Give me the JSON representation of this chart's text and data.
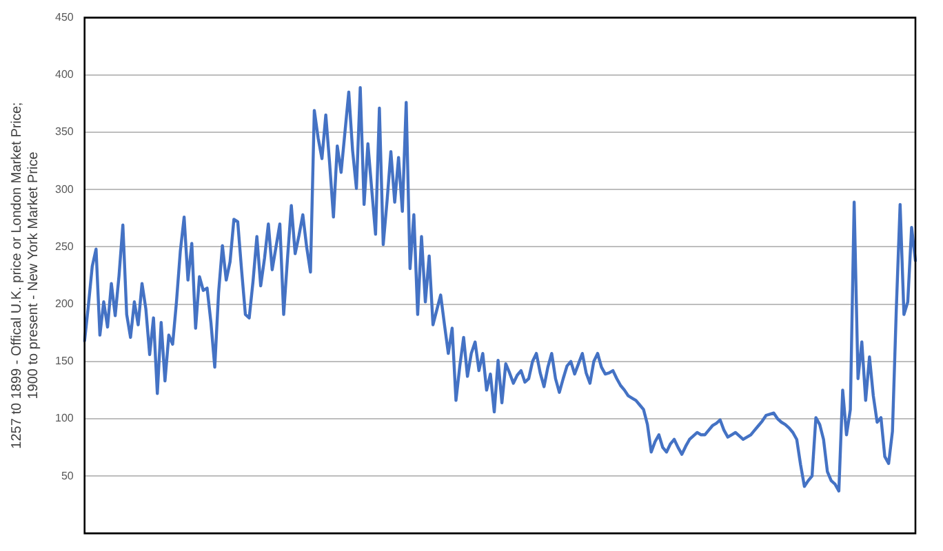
{
  "chart_data": {
    "type": "line",
    "ylabel": "1257 t0 1899 - Offical U.K. price or London Market Price; 1900 to present - New York Market Price",
    "categories": [
      null,
      null,
      null,
      null,
      null,
      null,
      null,
      null,
      null,
      null,
      null,
      null,
      null,
      null,
      null,
      null,
      null,
      null,
      null,
      null,
      null,
      null,
      null,
      null,
      null,
      null,
      null,
      null,
      null,
      null,
      null,
      null,
      null,
      null,
      null,
      null,
      null,
      null,
      null,
      null,
      null,
      null,
      null,
      null,
      null,
      null,
      null,
      null,
      null,
      null,
      null,
      null,
      null,
      null,
      null,
      null,
      null,
      null,
      null,
      null,
      null,
      null,
      null,
      null,
      null,
      null,
      null,
      null,
      null,
      null,
      null,
      null,
      null,
      null,
      null,
      null,
      null,
      null,
      null,
      null,
      null,
      null,
      null,
      null,
      null,
      null,
      null,
      null,
      null,
      null,
      null,
      null,
      null,
      null,
      null,
      null,
      null,
      null,
      null,
      null,
      null,
      null,
      null,
      null,
      null,
      null,
      null,
      null,
      null,
      null,
      null,
      null,
      null,
      null,
      null,
      null,
      null,
      null,
      null,
      null,
      null,
      null,
      null,
      null,
      null,
      null,
      null,
      null,
      null,
      null,
      null,
      null,
      null,
      null,
      null,
      null,
      null,
      null,
      null,
      null,
      null,
      null,
      null,
      null,
      null,
      null,
      null,
      null,
      null,
      null,
      null,
      null,
      null,
      null,
      null,
      null,
      null,
      null,
      null,
      null,
      null,
      null,
      null,
      null,
      null,
      null,
      null,
      null,
      null,
      null,
      null,
      null,
      null,
      null,
      null,
      null,
      null,
      null,
      null,
      null,
      null,
      null,
      null,
      null,
      null,
      null,
      null,
      null,
      null,
      null,
      null,
      null,
      null,
      null,
      null,
      null,
      null,
      null,
      null,
      null,
      null,
      null,
      null,
      null,
      null,
      null,
      null,
      null,
      null,
      null,
      null,
      null,
      null,
      null,
      null,
      null,
      null,
      null
    ],
    "series": [
      {
        "color": "#4472c4",
        "values": [
          168,
          199,
          233,
          248,
          173,
          202,
          180,
          218,
          190,
          225,
          269,
          191,
          171,
          202,
          182,
          218,
          196,
          156,
          188,
          122,
          184,
          133,
          173,
          165,
          202,
          246,
          276,
          221,
          253,
          179,
          224,
          212,
          214,
          184,
          145,
          210,
          251,
          221,
          237,
          274,
          272,
          230,
          191,
          188,
          220,
          259,
          216,
          240,
          270,
          230,
          250,
          270,
          191,
          240,
          286,
          244,
          260,
          278,
          250,
          228,
          369,
          345,
          327,
          365,
          323,
          276,
          338,
          315,
          350,
          385,
          334,
          301,
          389,
          287,
          340,
          300,
          261,
          371,
          252,
          290,
          333,
          289,
          328,
          281,
          376,
          231,
          278,
          191,
          259,
          202,
          242,
          182,
          195,
          208,
          182,
          157,
          179,
          116,
          146,
          171,
          137,
          157,
          167,
          142,
          157,
          125,
          139,
          106,
          151,
          114,
          148,
          140,
          131,
          138,
          142,
          132,
          135,
          150,
          157,
          140,
          128,
          145,
          157,
          135,
          123,
          135,
          146,
          150,
          139,
          148,
          157,
          140,
          131,
          150,
          157,
          145,
          139,
          140,
          142,
          135,
          129,
          125,
          120,
          118,
          116,
          112,
          108,
          95,
          71,
          80,
          86,
          75,
          71,
          78,
          82,
          75,
          69,
          76,
          82,
          85,
          88,
          86,
          86,
          90,
          94,
          96,
          99,
          90,
          84,
          86,
          88,
          85,
          82,
          84,
          86,
          90,
          94,
          98,
          103,
          104,
          105,
          100,
          97,
          95,
          92,
          88,
          82,
          60,
          41,
          46,
          50,
          101,
          95,
          82,
          54,
          46,
          43,
          37,
          125,
          86,
          108,
          289,
          135,
          167,
          116,
          154,
          120,
          97,
          101,
          67,
          61,
          89,
          195,
          287,
          191,
          202,
          267,
          238
        ]
      }
    ],
    "ylim": [
      0,
      450
    ],
    "yticks": [
      50,
      100,
      150,
      200,
      250,
      300,
      350,
      400,
      450
    ],
    "grid": "y",
    "legend": false,
    "marker": "none",
    "line_style": "solid",
    "tick_labels": "y"
  }
}
